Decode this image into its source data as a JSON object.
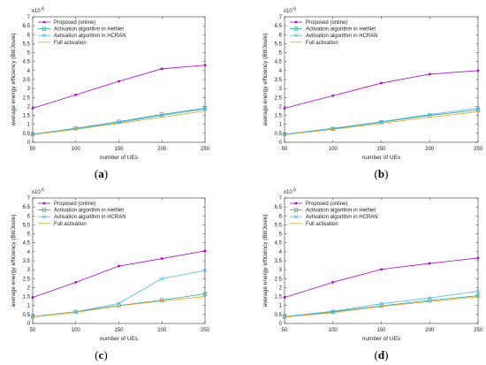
{
  "chart_data": [
    {
      "type": "line",
      "panel_label": "a",
      "xlabel": "number of UEs",
      "ylabel": "average energy efficiency (Bit/Joule)",
      "y_multiplier": "x10",
      "y_exponent": "6",
      "x": [
        50,
        100,
        150,
        200,
        250
      ],
      "xlim": [
        50,
        250
      ],
      "ylim": [
        0,
        7
      ],
      "x_ticks": [
        "50",
        "100",
        "150",
        "200",
        "250"
      ],
      "y_ticks": [
        "0",
        "0.5",
        "1",
        "1.5",
        "2",
        "2.5",
        "3",
        "3.5",
        "4",
        "4.5",
        "5",
        "5.5",
        "6",
        "6.5",
        "7"
      ],
      "legend_position": "top-left",
      "series": [
        {
          "name": "Proposed (online)",
          "color": "#b000d0",
          "marker": "dot",
          "values": [
            1.9,
            2.65,
            3.4,
            4.1,
            4.3
          ]
        },
        {
          "name": "Activation algorithm in HetNet",
          "color": "#2aa39a",
          "marker": "square",
          "values": [
            0.45,
            0.78,
            1.15,
            1.55,
            1.9
          ]
        },
        {
          "name": "Avtivation algorithm in HCRAN",
          "color": "#4cb8e8",
          "marker": "x",
          "values": [
            0.45,
            0.75,
            1.1,
            1.5,
            1.85
          ]
        },
        {
          "name": "Full activation",
          "color": "#f0a020",
          "marker": "none",
          "values": [
            0.42,
            0.72,
            1.05,
            1.4,
            1.75
          ]
        }
      ]
    },
    {
      "type": "line",
      "panel_label": "b",
      "xlabel": "number of UEs",
      "ylabel": "average energy efficiency (Bit/Joule)",
      "y_multiplier": "x10",
      "y_exponent": "6",
      "x": [
        50,
        100,
        150,
        200,
        250
      ],
      "xlim": [
        50,
        250
      ],
      "ylim": [
        0,
        7
      ],
      "x_ticks": [
        "50",
        "100",
        "150",
        "200",
        "250"
      ],
      "y_ticks": [
        "0",
        "0.5",
        "1",
        "1.5",
        "2",
        "2.5",
        "3",
        "3.5",
        "4",
        "4.5",
        "5",
        "5.5",
        "6",
        "6.5",
        "7"
      ],
      "legend_position": "top-left",
      "series": [
        {
          "name": "Proposed (online)",
          "color": "#b000d0",
          "marker": "dot",
          "values": [
            1.9,
            2.6,
            3.3,
            3.8,
            4.0
          ]
        },
        {
          "name": "Activation algorithm in HetNet",
          "color": "#2aa39a",
          "marker": "square",
          "values": [
            0.45,
            0.75,
            1.12,
            1.5,
            1.8
          ]
        },
        {
          "name": "Avtivation algorithm in HCRAN",
          "color": "#4cb8e8",
          "marker": "x",
          "values": [
            0.45,
            0.78,
            1.15,
            1.55,
            1.9
          ]
        },
        {
          "name": "Full activation",
          "color": "#f0a020",
          "marker": "none",
          "values": [
            0.42,
            0.72,
            1.05,
            1.4,
            1.7
          ]
        }
      ]
    },
    {
      "type": "line",
      "panel_label": "c",
      "xlabel": "number of UEs",
      "ylabel": "average energy efficiency (Bit/Joule)",
      "y_multiplier": "x10",
      "y_exponent": "6",
      "x": [
        50,
        100,
        150,
        200,
        250
      ],
      "xlim": [
        50,
        250
      ],
      "ylim": [
        0,
        7
      ],
      "x_ticks": [
        "50",
        "100",
        "150",
        "200",
        "250"
      ],
      "y_ticks": [
        "0",
        "0.5",
        "1",
        "1.5",
        "2",
        "2.5",
        "3",
        "3.5",
        "4",
        "4.5",
        "5",
        "5.5",
        "6",
        "6.5",
        "7"
      ],
      "legend_position": "top-left",
      "series": [
        {
          "name": "Proposed (online)",
          "color": "#b000d0",
          "marker": "dot",
          "values": [
            1.45,
            2.3,
            3.2,
            3.62,
            4.05
          ]
        },
        {
          "name": "Activation algorithm in HetNet",
          "color": "#2aa39a",
          "marker": "square",
          "values": [
            0.38,
            0.65,
            1.0,
            1.3,
            1.65
          ]
        },
        {
          "name": "Avtivation algorithm in HCRAN",
          "color": "#4cb8e8",
          "marker": "x",
          "values": [
            0.38,
            0.65,
            1.12,
            2.5,
            2.95
          ]
        },
        {
          "name": "Full activation",
          "color": "#f0a020",
          "marker": "none",
          "values": [
            0.36,
            0.62,
            0.98,
            1.25,
            1.5
          ]
        }
      ]
    },
    {
      "type": "line",
      "panel_label": "d",
      "xlabel": "number of UEs",
      "ylabel": "average energy efficiency (Bit/Joule)",
      "y_multiplier": "x10",
      "y_exponent": "6",
      "x": [
        50,
        100,
        150,
        200,
        250
      ],
      "xlim": [
        50,
        250
      ],
      "ylim": [
        0,
        7
      ],
      "x_ticks": [
        "50",
        "100",
        "150",
        "200",
        "250"
      ],
      "y_ticks": [
        "0",
        "0.5",
        "1",
        "1.5",
        "2",
        "2.5",
        "3",
        "3.5",
        "4",
        "4.5",
        "5",
        "5.5",
        "6",
        "6.5",
        "7"
      ],
      "legend_position": "top-left",
      "series": [
        {
          "name": "Proposed (online)",
          "color": "#b000d0",
          "marker": "dot",
          "values": [
            1.45,
            2.3,
            3.02,
            3.35,
            3.65
          ]
        },
        {
          "name": "Activation algorithm in HetNet",
          "color": "#2aa39a",
          "marker": "square",
          "values": [
            0.38,
            0.65,
            0.98,
            1.28,
            1.55
          ]
        },
        {
          "name": "Avtivation algorithm in HCRAN",
          "color": "#4cb8e8",
          "marker": "x",
          "values": [
            0.38,
            0.68,
            1.1,
            1.42,
            1.8
          ]
        },
        {
          "name": "Full activation",
          "color": "#f0a020",
          "marker": "none",
          "values": [
            0.35,
            0.6,
            0.95,
            1.22,
            1.48
          ]
        }
      ]
    }
  ]
}
